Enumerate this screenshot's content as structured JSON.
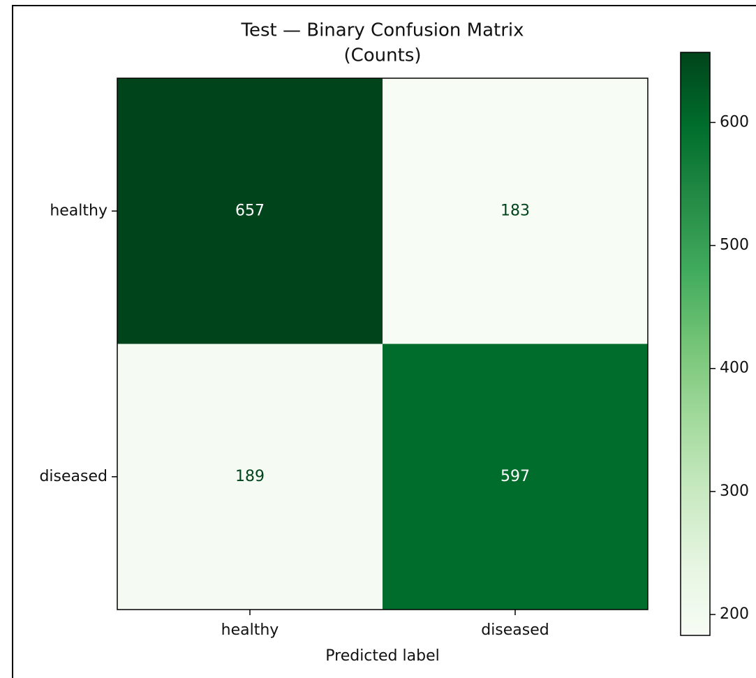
{
  "chart_data": {
    "type": "heatmap",
    "title": [
      "Test — Binary Confusion Matrix",
      "(Counts)"
    ],
    "xlabel": "Predicted label",
    "x_categories": [
      "healthy",
      "diseased"
    ],
    "y_categories": [
      "healthy",
      "diseased"
    ],
    "values": [
      [
        657,
        183
      ],
      [
        189,
        597
      ]
    ],
    "colormap": "Greens",
    "clim": [
      183,
      657
    ],
    "cticks": [
      200,
      300,
      400,
      500,
      600
    ]
  }
}
